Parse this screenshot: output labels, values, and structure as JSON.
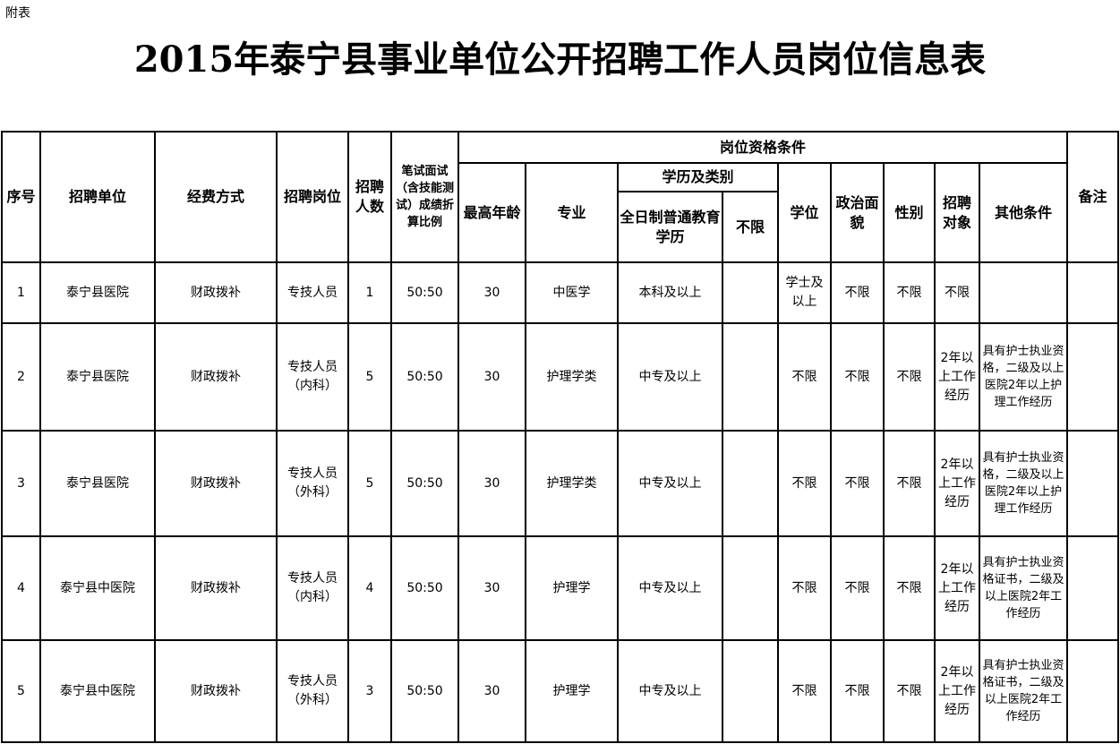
{
  "top_note": "附表",
  "title": "2015年泰宁县事业单位公开招聘工作人员岗位信息表",
  "header": {
    "seq": "序号",
    "unit": "招聘单位",
    "funding": "经费方式",
    "position": "招聘岗位",
    "count": "招聘人数",
    "ratio": "笔试面试（含技能测试）成绩折算比例",
    "qualifications": "岗位资格条件",
    "max_age": "最高年龄",
    "major": "专业",
    "education": "学历及类别",
    "fulltime": "全日制普通教育学历",
    "unlimited": "不限",
    "degree": "学位",
    "political": "政治面貌",
    "gender": "性别",
    "target": "招聘对象",
    "other": "其他条件",
    "remarks": "备注"
  },
  "rows": [
    {
      "seq": "1",
      "unit": "泰宁县医院",
      "funding": "财政拨补",
      "position": "专技人员",
      "count": "1",
      "ratio": "50:50",
      "max_age": "30",
      "major": "中医学",
      "fulltime": "本科及以上",
      "unlimited": "",
      "degree": "学士及以上",
      "political": "不限",
      "gender": "不限",
      "target": "不限",
      "other": "",
      "remarks": ""
    },
    {
      "seq": "2",
      "unit": "泰宁县医院",
      "funding": "财政拨补",
      "position": "专技人员（内科）",
      "count": "5",
      "ratio": "50:50",
      "max_age": "30",
      "major": "护理学类",
      "fulltime": "中专及以上",
      "unlimited": "",
      "degree": "不限",
      "political": "不限",
      "gender": "不限",
      "target": "2年以上工作经历",
      "other": "具有护士执业资格，二级及以上医院2年以上护理工作经历",
      "remarks": ""
    },
    {
      "seq": "3",
      "unit": "泰宁县医院",
      "funding": "财政拨补",
      "position": "专技人员（外科）",
      "count": "5",
      "ratio": "50:50",
      "max_age": "30",
      "major": "护理学类",
      "fulltime": "中专及以上",
      "unlimited": "",
      "degree": "不限",
      "political": "不限",
      "gender": "不限",
      "target": "2年以上工作经历",
      "other": "具有护士执业资格，二级及以上医院2年以上护理工作经历",
      "remarks": ""
    },
    {
      "seq": "4",
      "unit": "泰宁县中医院",
      "funding": "财政拨补",
      "position": "专技人员（内科）",
      "count": "4",
      "ratio": "50:50",
      "max_age": "30",
      "major": "护理学",
      "fulltime": "中专及以上",
      "unlimited": "",
      "degree": "不限",
      "political": "不限",
      "gender": "不限",
      "target": "2年以上工作经历",
      "other": "具有护士执业资格证书，二级及以上医院2年工作经历",
      "remarks": ""
    },
    {
      "seq": "5",
      "unit": "泰宁县中医院",
      "funding": "财政拨补",
      "position": "专技人员（外科）",
      "count": "3",
      "ratio": "50:50",
      "max_age": "30",
      "major": "护理学",
      "fulltime": "中专及以上",
      "unlimited": "",
      "degree": "不限",
      "political": "不限",
      "gender": "不限",
      "target": "2年以上工作经历",
      "other": "具有护士执业资格证书，二级及以上医院2年工作经历",
      "remarks": ""
    }
  ]
}
